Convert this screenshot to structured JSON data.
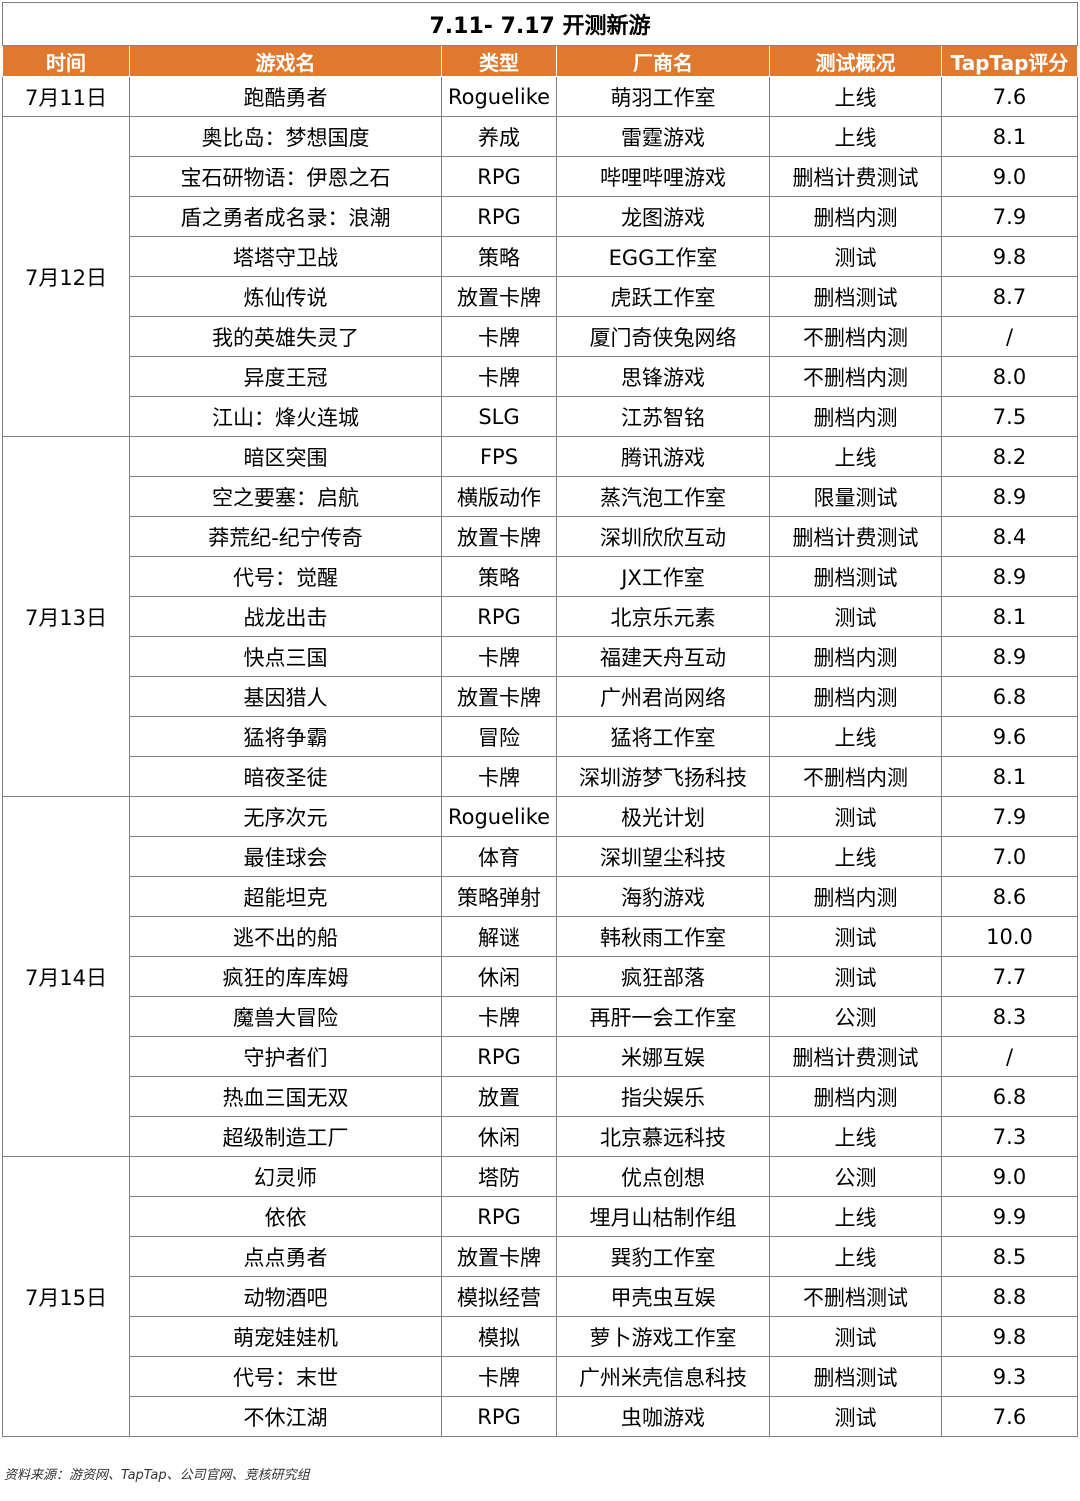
{
  "title": "7.11- 7.17 开测新游",
  "headers": [
    "时间",
    "游戏名",
    "类型",
    "厂商名",
    "测试概况",
    "TapTap评分"
  ],
  "groups": [
    {
      "date": "7月11日",
      "rows": [
        [
          "跑酷勇者",
          "Roguelike",
          "萌羽工作室",
          "上线",
          "7.6"
        ]
      ]
    },
    {
      "date": "7月12日",
      "rows": [
        [
          "奥比岛：梦想国度",
          "养成",
          "雷霆游戏",
          "上线",
          "8.1"
        ],
        [
          "宝石研物语：伊恩之石",
          "RPG",
          "哔哩哔哩游戏",
          "删档计费测试",
          "9.0"
        ],
        [
          "盾之勇者成名录：浪潮",
          "RPG",
          "龙图游戏",
          "删档内测",
          "7.9"
        ],
        [
          "塔塔守卫战",
          "策略",
          "EGG工作室",
          "测试",
          "9.8"
        ],
        [
          "炼仙传说",
          "放置卡牌",
          "虎跃工作室",
          "删档测试",
          "8.7"
        ],
        [
          "我的英雄失灵了",
          "卡牌",
          "厦门奇侠兔网络",
          "不删档内测",
          "/"
        ],
        [
          "异度王冠",
          "卡牌",
          "思锋游戏",
          "不删档内测",
          "8.0"
        ],
        [
          "江山：烽火连城",
          "SLG",
          "江苏智铭",
          "删档内测",
          "7.5"
        ]
      ]
    },
    {
      "date": "7月13日",
      "rows": [
        [
          "暗区突围",
          "FPS",
          "腾讯游戏",
          "上线",
          "8.2"
        ],
        [
          "空之要塞：启航",
          "横版动作",
          "蒸汽泡工作室",
          "限量测试",
          "8.9"
        ],
        [
          "莽荒纪-纪宁传奇",
          "放置卡牌",
          "深圳欣欣互动",
          "删档计费测试",
          "8.4"
        ],
        [
          "代号：觉醒",
          "策略",
          "JX工作室",
          "删档测试",
          "8.9"
        ],
        [
          "战龙出击",
          "RPG",
          "北京乐元素",
          "测试",
          "8.1"
        ],
        [
          "快点三国",
          "卡牌",
          "福建天舟互动",
          "删档内测",
          "8.9"
        ],
        [
          "基因猎人",
          "放置卡牌",
          "广州君尚网络",
          "删档内测",
          "6.8"
        ],
        [
          "猛将争霸",
          "冒险",
          "猛将工作室",
          "上线",
          "9.6"
        ],
        [
          "暗夜圣徒",
          "卡牌",
          "深圳游梦飞扬科技",
          "不删档内测",
          "8.1"
        ]
      ]
    },
    {
      "date": "7月14日",
      "rows": [
        [
          "无序次元",
          "Roguelike",
          "极光计划",
          "测试",
          "7.9"
        ],
        [
          "最佳球会",
          "体育",
          "深圳望尘科技",
          "上线",
          "7.0"
        ],
        [
          "超能坦克",
          "策略弹射",
          "海豹游戏",
          "删档内测",
          "8.6"
        ],
        [
          "逃不出的船",
          "解谜",
          "韩秋雨工作室",
          "测试",
          "10.0"
        ],
        [
          "疯狂的库库姆",
          "休闲",
          "疯狂部落",
          "测试",
          "7.7"
        ],
        [
          "魔兽大冒险",
          "卡牌",
          "再肝一会工作室",
          "公测",
          "8.3"
        ],
        [
          "守护者们",
          "RPG",
          "米娜互娱",
          "删档计费测试",
          "/"
        ],
        [
          "热血三国无双",
          "放置",
          "指尖娱乐",
          "删档内测",
          "6.8"
        ],
        [
          "超级制造工厂",
          "休闲",
          "北京慕远科技",
          "上线",
          "7.3"
        ]
      ]
    },
    {
      "date": "7月15日",
      "rows": [
        [
          "幻灵师",
          "塔防",
          "优点创想",
          "公测",
          "9.0"
        ],
        [
          "依依",
          "RPG",
          "埋月山枯制作组",
          "上线",
          "9.9"
        ],
        [
          "点点勇者",
          "放置卡牌",
          "巽豹工作室",
          "上线",
          "8.5"
        ],
        [
          "动物酒吧",
          "模拟经营",
          "甲壳虫互娱",
          "不删档测试",
          "8.8"
        ],
        [
          "萌宠娃娃机",
          "模拟",
          "萝卜游戏工作室",
          "测试",
          "9.8"
        ],
        [
          "代号：末世",
          "卡牌",
          "广州米壳信息科技",
          "删档测试",
          "9.3"
        ],
        [
          "不休江湖",
          "RPG",
          "虫咖游戏",
          "测试",
          "7.6"
        ]
      ]
    }
  ],
  "source": "资料来源：游资网、TapTap、公司官网、竞核研究组",
  "colors": {
    "header_bg": "#e0782e",
    "header_text": "#ffffff",
    "border": "#808080"
  }
}
